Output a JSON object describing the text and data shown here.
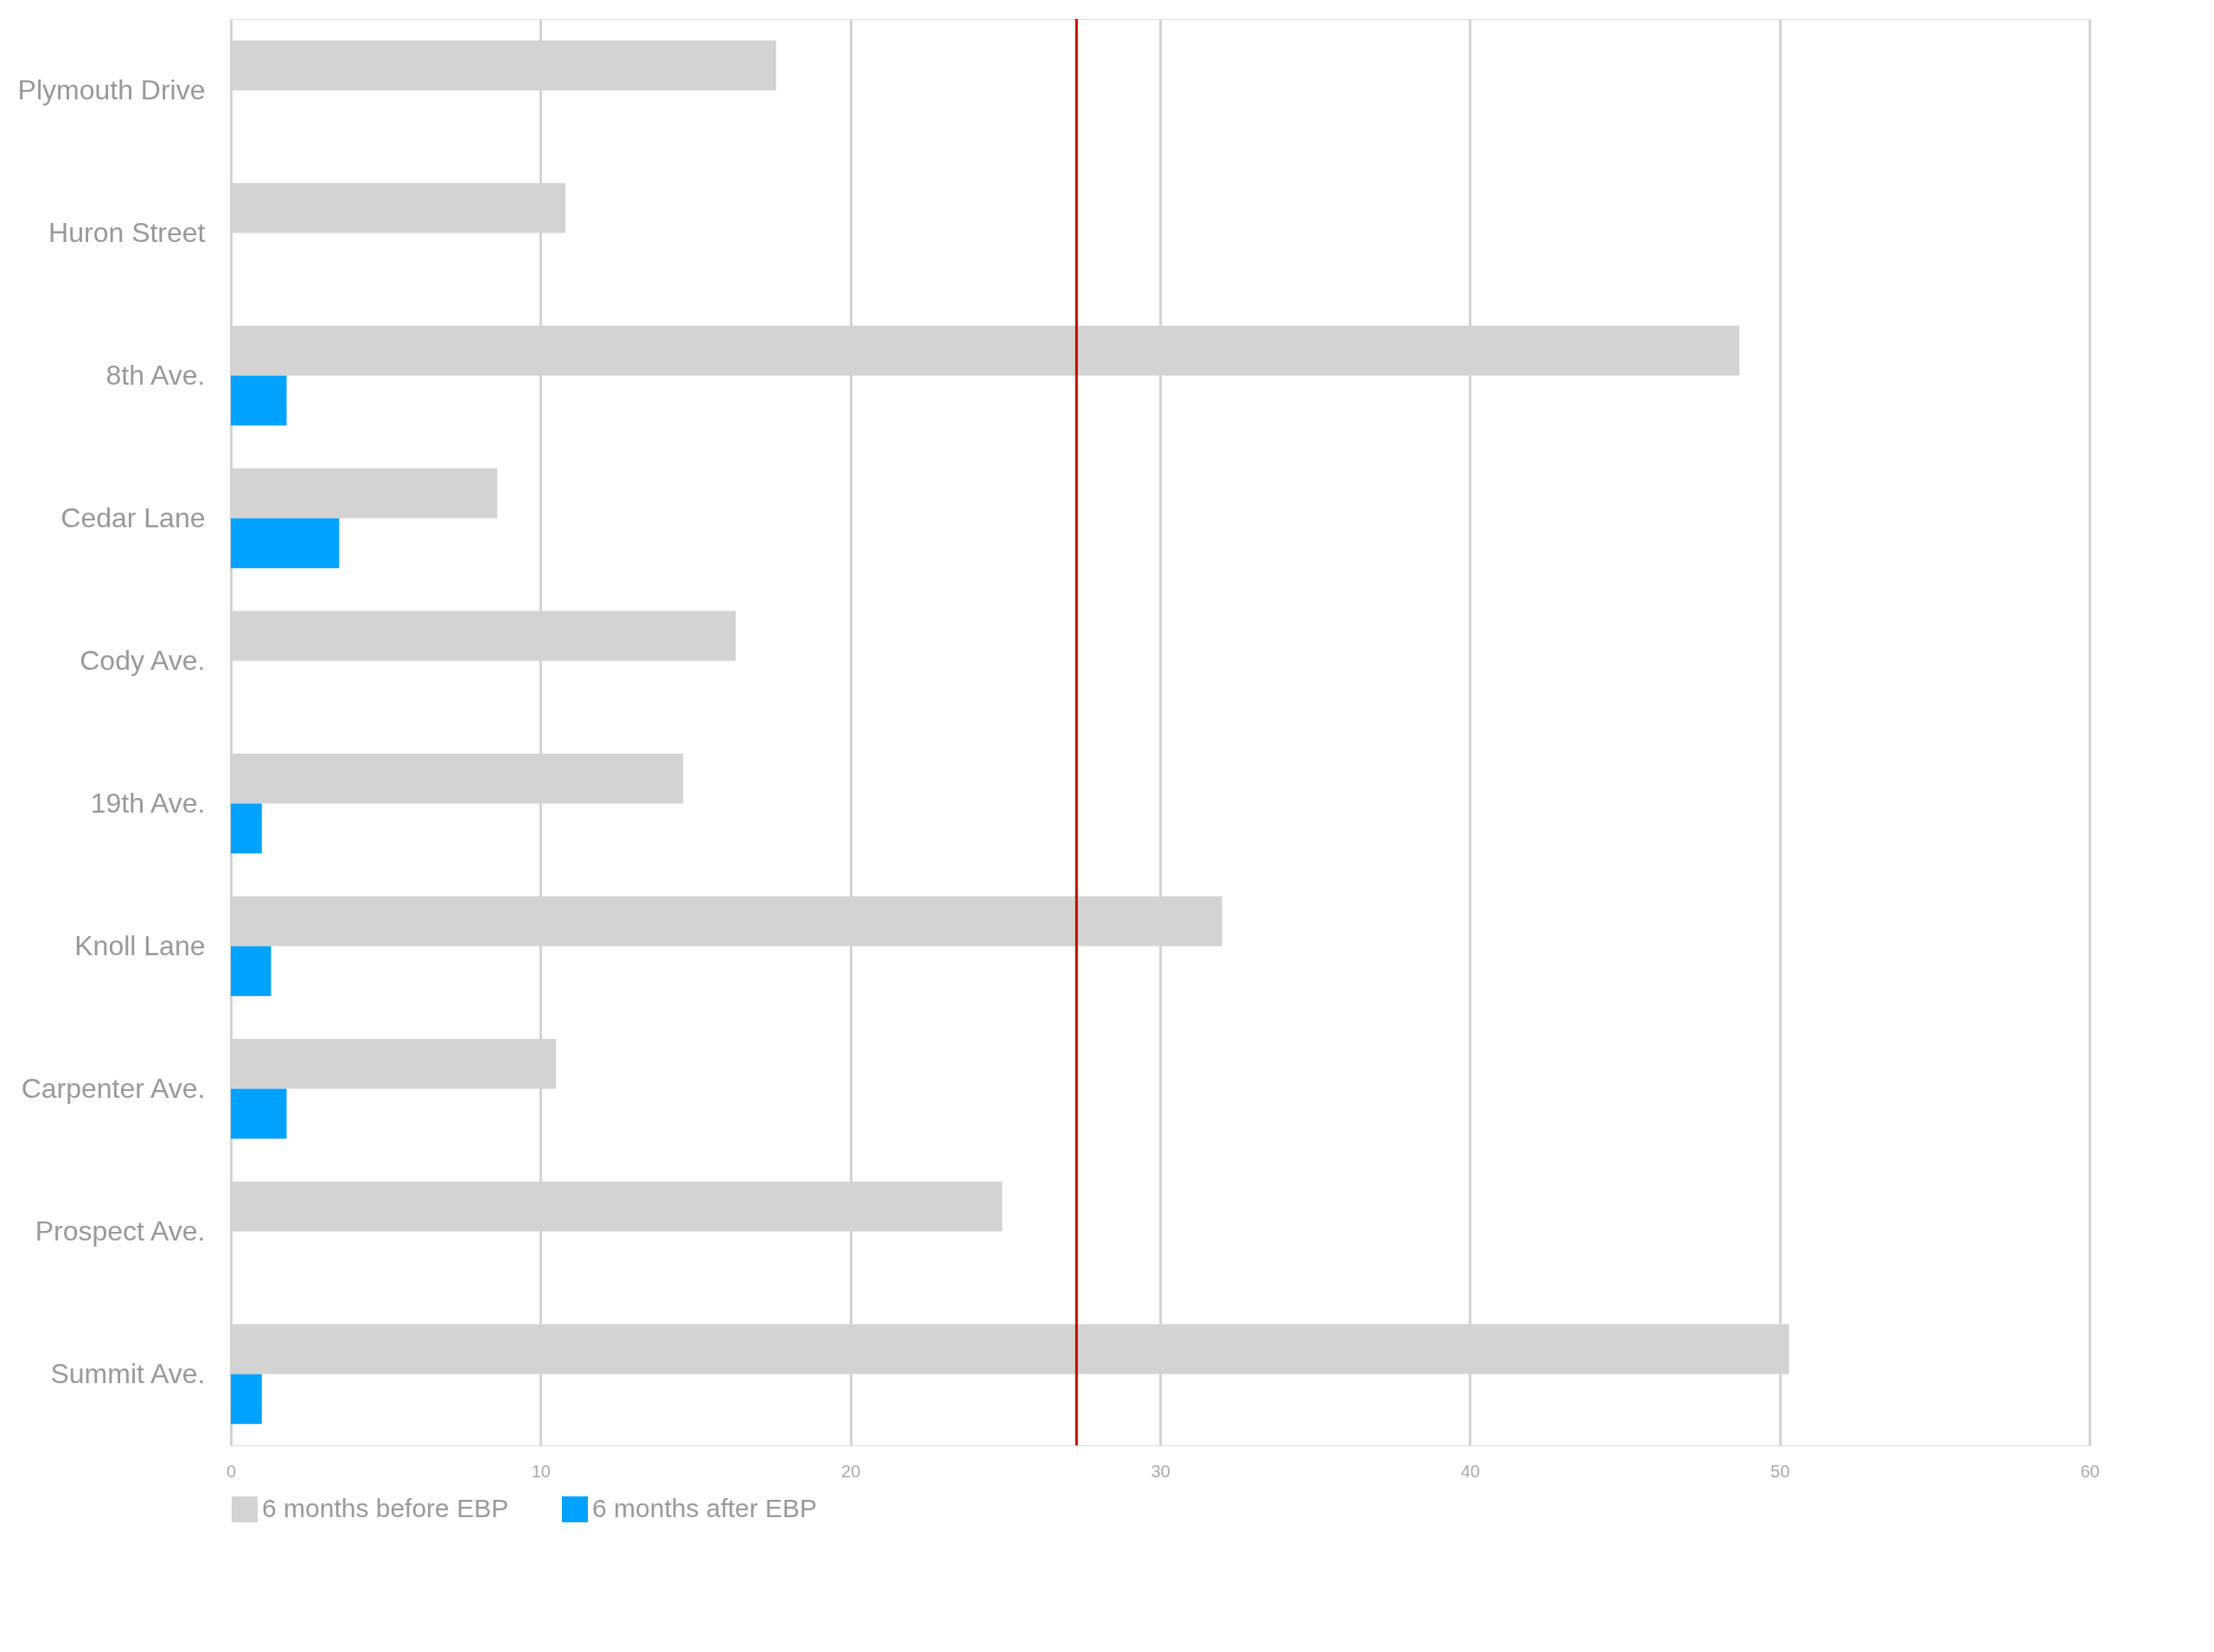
{
  "chart_data": {
    "type": "bar",
    "orientation": "horizontal",
    "categories": [
      "Plymouth Drive",
      "Huron Street",
      "8th Ave.",
      "Cedar Lane",
      "Cody Ave.",
      "19th Ave.",
      "Knoll Lane",
      "Carpenter Ave.",
      "Prospect Ave.",
      "Summit Ave."
    ],
    "series": [
      {
        "name": "6 months before EBP",
        "color": "#d3d3d3",
        "values": [
          17.6,
          10.8,
          48.7,
          8.6,
          16.3,
          14.6,
          32.0,
          10.5,
          24.9,
          50.3
        ]
      },
      {
        "name": "6 months after EBP",
        "color": "#00a2ff",
        "values": [
          null,
          null,
          1.8,
          3.5,
          null,
          1.0,
          1.3,
          1.8,
          null,
          1.0
        ]
      }
    ],
    "xlim": [
      0,
      60
    ],
    "xticks": [
      0,
      10,
      20,
      30,
      40,
      50,
      60
    ],
    "grid": "x",
    "legend": "bottom",
    "ref_lines": [
      {
        "axis": "x",
        "value": 27.3,
        "color": "#c00000"
      }
    ]
  }
}
